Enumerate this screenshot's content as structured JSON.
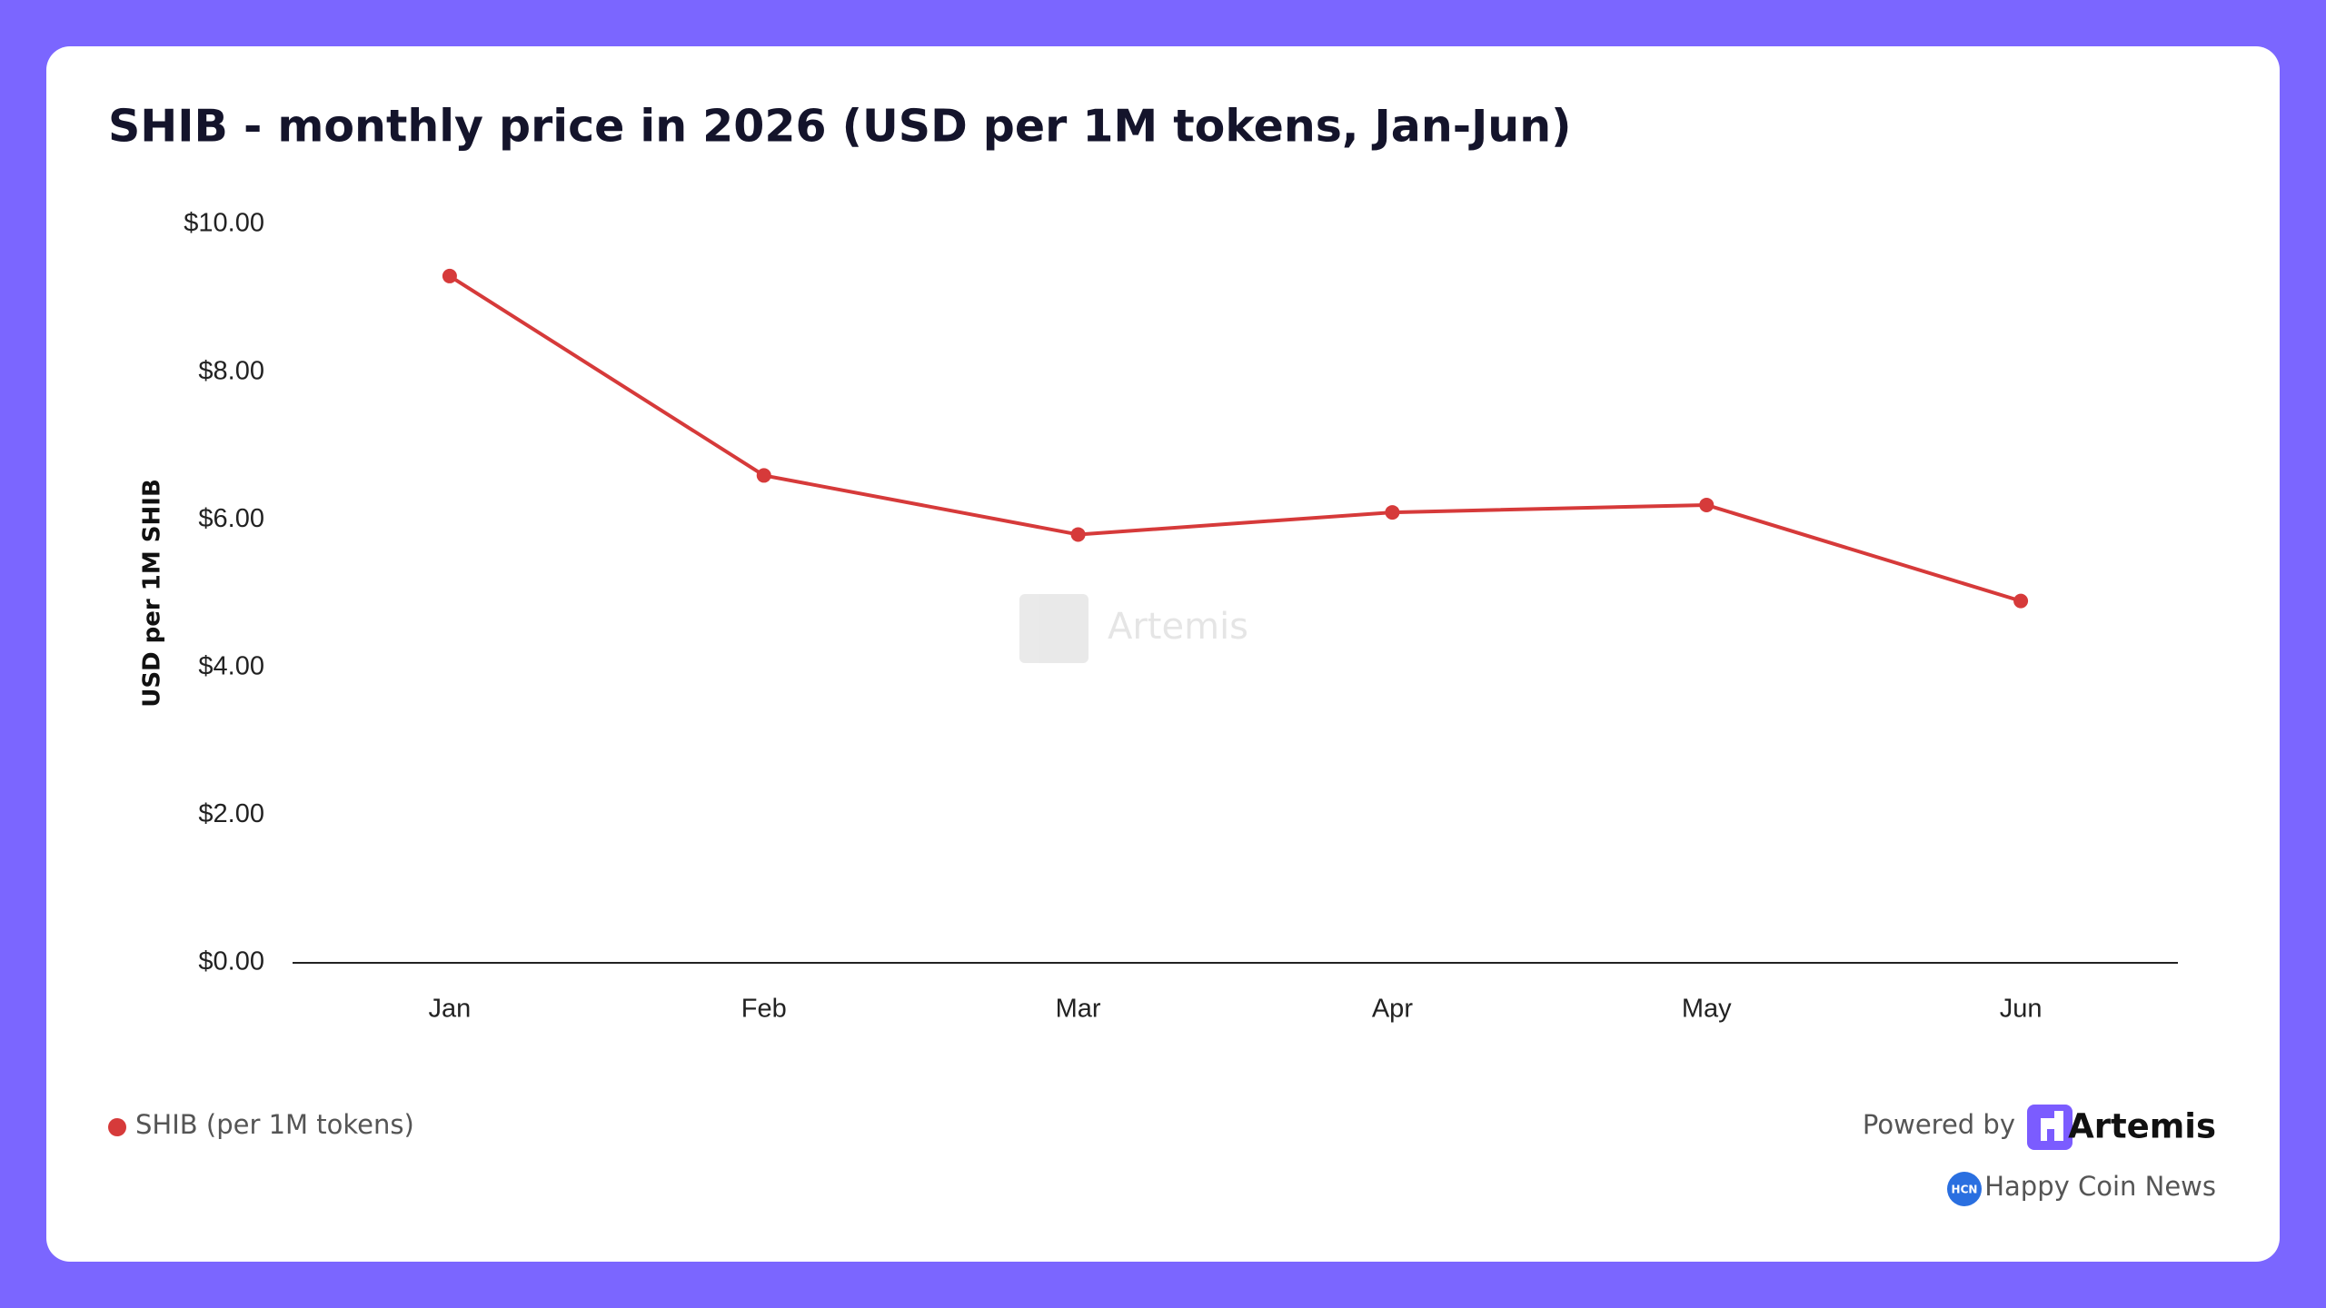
{
  "chart_data": {
    "type": "line",
    "title": "SHIB - monthly price in 2026 (USD per 1M tokens, Jan-Jun)",
    "y_axis_label": "USD per 1M SHIB",
    "categories": [
      "Jan",
      "Feb",
      "Mar",
      "Apr",
      "May",
      "Jun"
    ],
    "series": [
      {
        "name": "SHIB (per 1M tokens)",
        "color": "#d63a3a",
        "values": [
          9.3,
          6.6,
          5.8,
          6.1,
          6.2,
          4.9
        ]
      }
    ],
    "ylim": [
      0,
      10
    ],
    "yticks": [
      {
        "value": 0,
        "label": "$0.00"
      },
      {
        "value": 2,
        "label": "$2.00"
      },
      {
        "value": 4,
        "label": "$4.00"
      },
      {
        "value": 6,
        "label": "$6.00"
      },
      {
        "value": 8,
        "label": "$8.00"
      },
      {
        "value": 10,
        "label": "$10.00"
      }
    ],
    "grid": false
  },
  "branding": {
    "powered_by": "Powered by",
    "brand": "Artemis",
    "source": "Happy Coin News",
    "source_icon": "HCN",
    "watermark": "Artemis"
  }
}
